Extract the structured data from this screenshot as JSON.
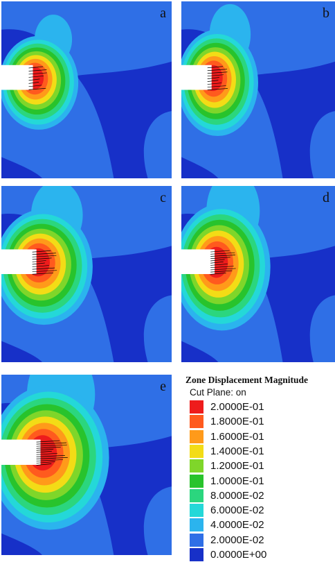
{
  "panels": [
    {
      "id": "a",
      "letter": "a",
      "size": 0.25
    },
    {
      "id": "b",
      "letter": "b",
      "size": 0.45
    },
    {
      "id": "c",
      "letter": "c",
      "size": 0.6
    },
    {
      "id": "d",
      "letter": "d",
      "size": 0.78
    },
    {
      "id": "e",
      "letter": "e",
      "size": 1.0
    }
  ],
  "legend": {
    "title": "Zone Displacement Magnitude",
    "subtitle": "Cut Plane: on",
    "levels": [
      {
        "label": "2.0000E-01",
        "color": "#ee1c1c"
      },
      {
        "label": "1.8000E-01",
        "color": "#ff5a1e"
      },
      {
        "label": "1.6000E-01",
        "color": "#ff9a1a"
      },
      {
        "label": "1.4000E-01",
        "color": "#f3dc16"
      },
      {
        "label": "1.2000E-01",
        "color": "#7fd62a"
      },
      {
        "label": "1.0000E-01",
        "color": "#28c32c"
      },
      {
        "label": "8.0000E-02",
        "color": "#2bd67e"
      },
      {
        "label": "6.0000E-02",
        "color": "#24d8d8"
      },
      {
        "label": "4.0000E-02",
        "color": "#2bb4ee"
      },
      {
        "label": "2.0000E-02",
        "color": "#2f6fe6"
      },
      {
        "label": "0.0000E+00",
        "color": "#1730c8"
      }
    ]
  },
  "colors": {
    "background_field": "#2f6fe6",
    "low_zone": "#1730c8",
    "opening": "#ffffff"
  }
}
